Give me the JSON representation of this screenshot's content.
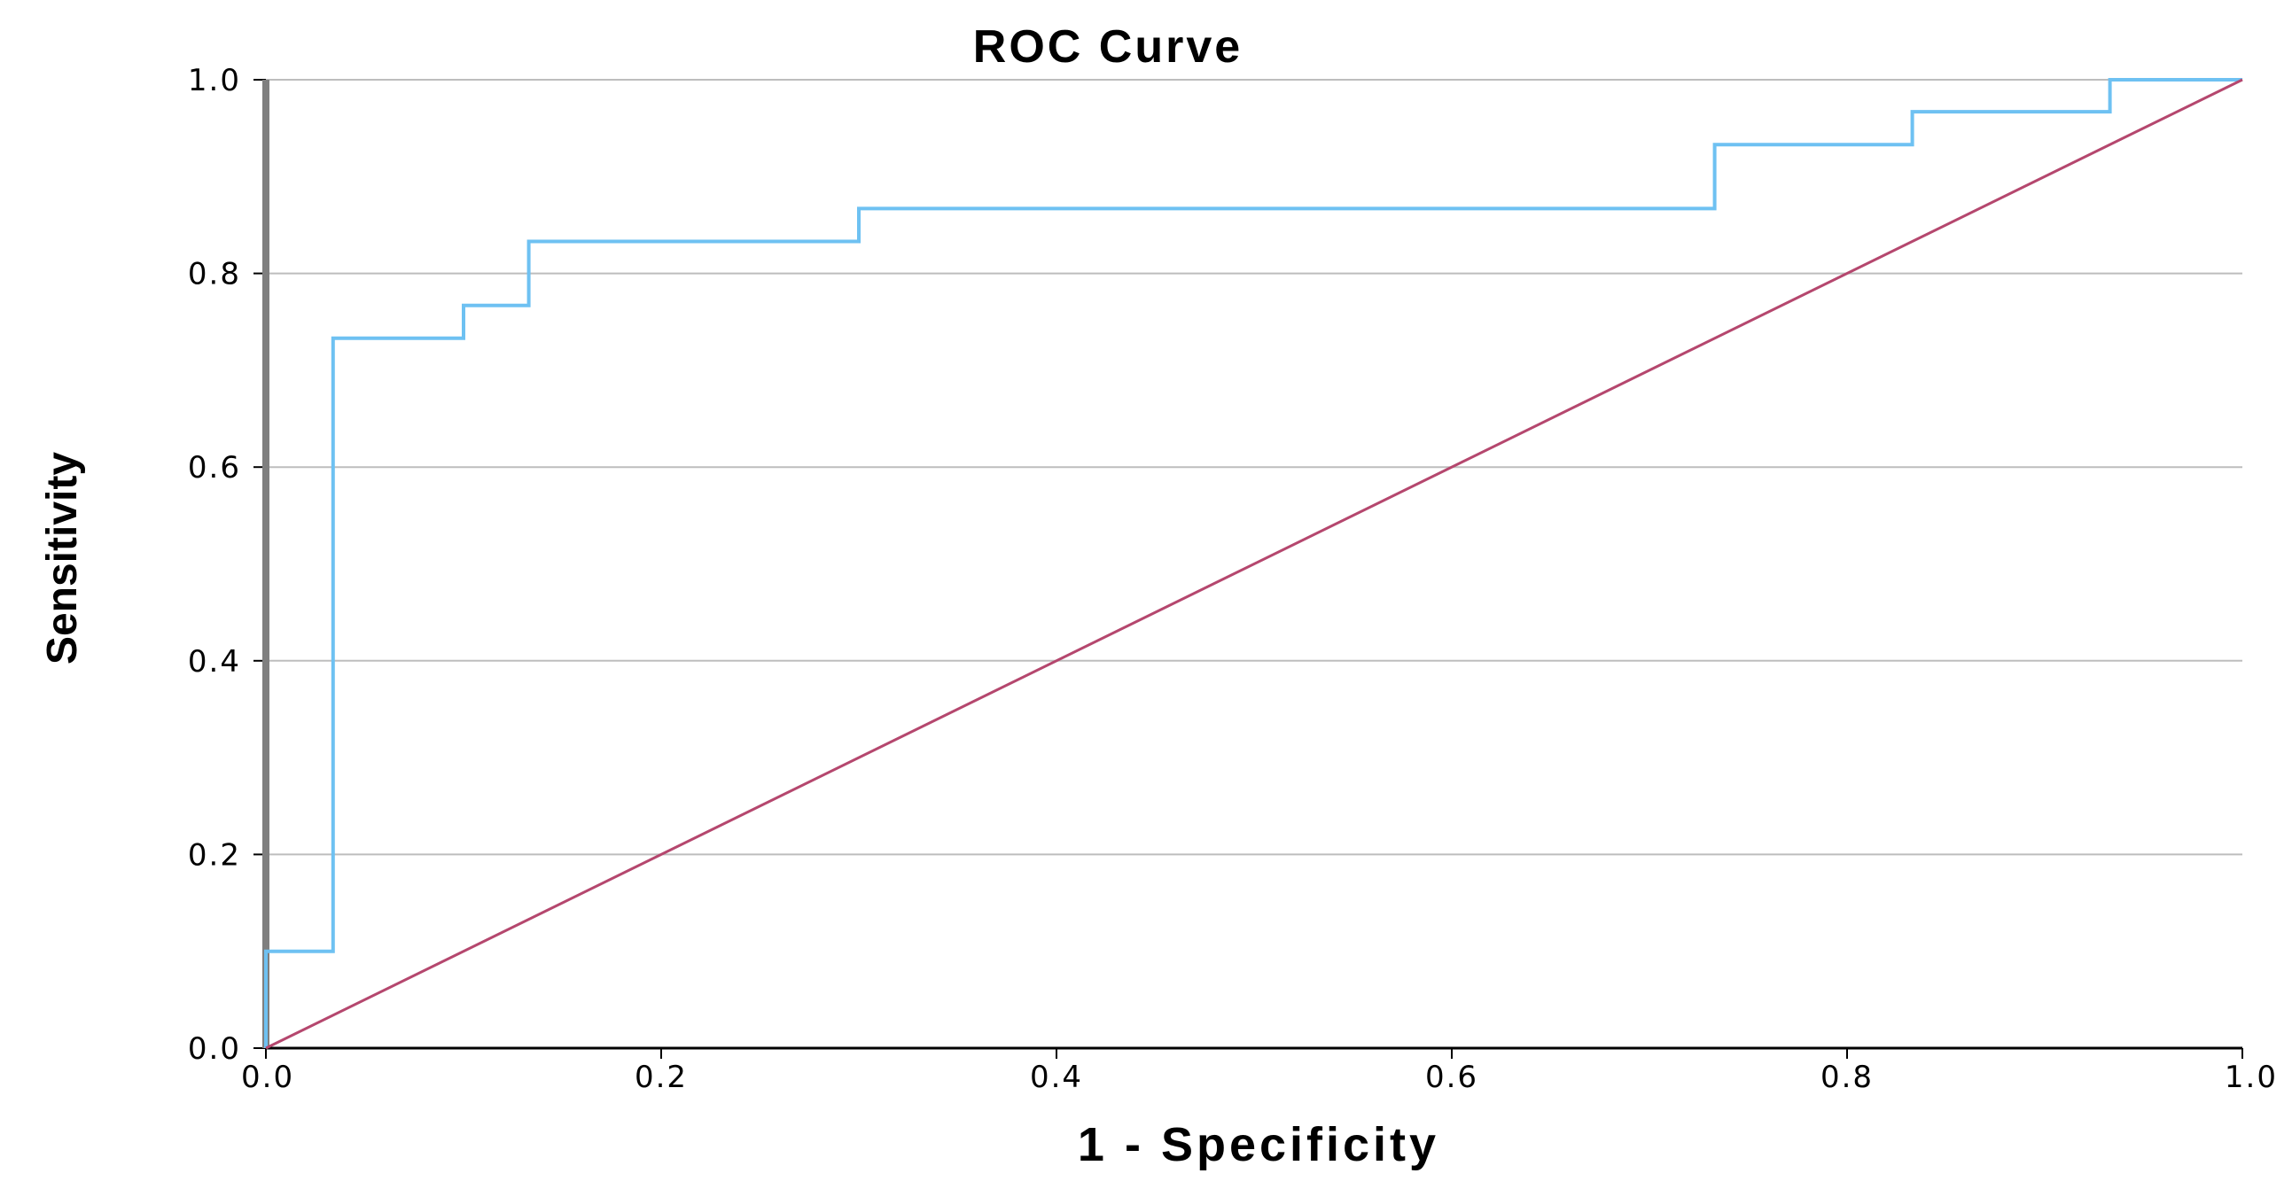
{
  "chart_data": {
    "type": "line",
    "title": "ROC Curve",
    "xlabel": "1 - Specificity",
    "ylabel": "Sensitivity",
    "xlim": [
      0,
      1
    ],
    "ylim": [
      0,
      1
    ],
    "x_ticks": [
      "0.0",
      "0.2",
      "0.4",
      "0.6",
      "0.8",
      "1.0"
    ],
    "y_ticks": [
      "0.0",
      "0.2",
      "0.4",
      "0.6",
      "0.8",
      "1.0"
    ],
    "grid": "horizontal",
    "series": [
      {
        "kind": "step",
        "color": "#6EC1F2",
        "x": [
          0.0,
          0.0,
          0.034,
          0.034,
          0.1,
          0.1,
          0.133,
          0.133,
          0.3,
          0.3,
          0.733,
          0.733,
          0.833,
          0.833,
          0.933,
          0.933,
          1.0
        ],
        "y": [
          0.0,
          0.1,
          0.1,
          0.733,
          0.733,
          0.767,
          0.767,
          0.833,
          0.833,
          0.867,
          0.867,
          0.933,
          0.933,
          0.967,
          0.967,
          1.0,
          1.0
        ]
      },
      {
        "kind": "reference",
        "color": "#B5476E",
        "x": [
          0.0,
          1.0
        ],
        "y": [
          0.0,
          1.0
        ]
      }
    ]
  }
}
